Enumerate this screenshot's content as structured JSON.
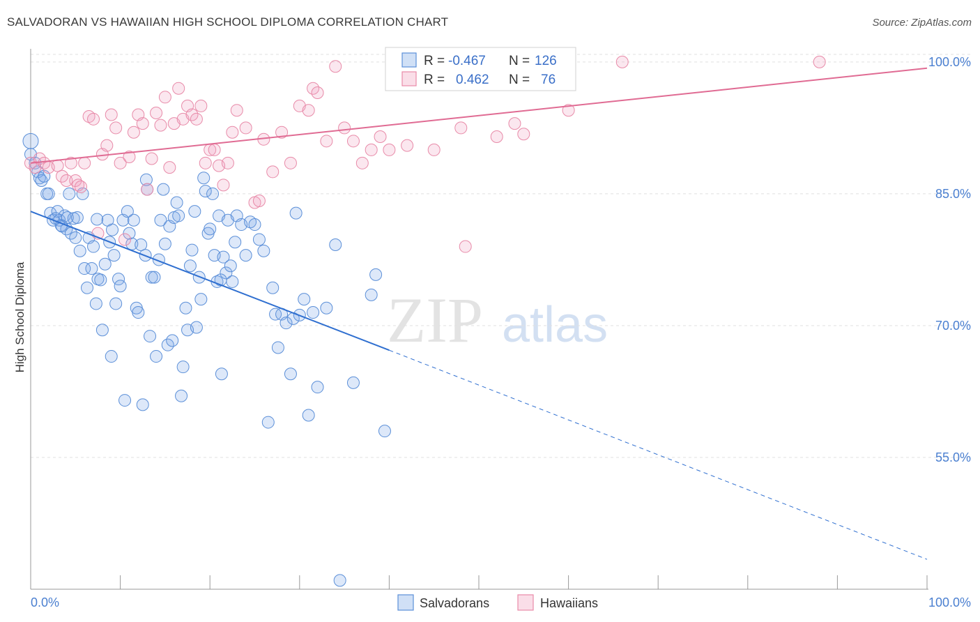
{
  "header": {
    "title": "SALVADORAN VS HAWAIIAN HIGH SCHOOL DIPLOMA CORRELATION CHART",
    "source": "Source: ZipAtlas.com"
  },
  "watermark": {
    "zip": "ZIP",
    "atlas": "atlas"
  },
  "colors": {
    "blue": "#5b8fd8",
    "blue_fill": "rgba(120,165,230,0.25)",
    "blue_line": "#2f6fd0",
    "pink": "#e88aa8",
    "pink_fill": "rgba(240,160,190,0.25)",
    "pink_line": "#e06b93",
    "grid": "#e0e0e0",
    "tick_text": "#4a7fd0"
  },
  "legend_box": {
    "r_label": "R =",
    "n_label": "N =",
    "rows": [
      {
        "r": "-0.467",
        "n": "126"
      },
      {
        "r": "0.462",
        "n": "76"
      }
    ]
  },
  "chart_data": {
    "type": "scatter",
    "title": "SALVADORAN VS HAWAIIAN HIGH SCHOOL DIPLOMA CORRELATION CHART",
    "xlabel": "",
    "ylabel": "High School Diploma",
    "xlim": [
      0,
      100
    ],
    "ylim": [
      40,
      101.5
    ],
    "x_tick_labels": [
      "0.0%",
      "100.0%"
    ],
    "y_ticks": [
      55,
      70,
      85,
      100
    ],
    "y_tick_labels": [
      "55.0%",
      "70.0%",
      "85.0%",
      "100.0%"
    ],
    "legend": [
      "Salvadorans",
      "Hawaiians"
    ],
    "series": [
      {
        "name": "Salvadorans",
        "r": -0.467,
        "n": 126,
        "trend": {
          "x0": 0,
          "y0": 83.0,
          "x1": 40,
          "y1": 67.2,
          "dash_to_x": 100,
          "dash_to_y": 43.4
        },
        "points": [
          [
            0,
            91
          ],
          [
            0,
            89.5
          ],
          [
            0.5,
            88.5
          ],
          [
            0.8,
            87.5
          ],
          [
            1,
            86.8
          ],
          [
            1.2,
            86.5
          ],
          [
            1.5,
            87
          ],
          [
            1.8,
            85
          ],
          [
            2,
            85
          ],
          [
            2.2,
            82.8
          ],
          [
            2.5,
            82
          ],
          [
            3,
            83
          ],
          [
            3.2,
            82
          ],
          [
            3.5,
            81.3
          ],
          [
            3.8,
            82.5
          ],
          [
            4,
            81
          ],
          [
            4.3,
            85
          ],
          [
            4.5,
            80.5
          ],
          [
            4.8,
            82.2
          ],
          [
            5,
            80
          ],
          [
            5.2,
            82.3
          ],
          [
            5.5,
            78.5
          ],
          [
            5.8,
            85
          ],
          [
            6,
            76.5
          ],
          [
            6.3,
            74.3
          ],
          [
            6.5,
            80
          ],
          [
            6.8,
            76.5
          ],
          [
            7,
            79
          ],
          [
            7.3,
            72.5
          ],
          [
            7.5,
            75.3
          ],
          [
            7.8,
            75.2
          ],
          [
            8,
            69.5
          ],
          [
            8.3,
            77
          ],
          [
            8.6,
            82
          ],
          [
            8.8,
            79.5
          ],
          [
            9,
            66.5
          ],
          [
            9.3,
            78
          ],
          [
            9.5,
            72.5
          ],
          [
            9.8,
            75.3
          ],
          [
            10,
            74.5
          ],
          [
            10.3,
            82
          ],
          [
            10.5,
            61.5
          ],
          [
            10.8,
            83
          ],
          [
            11,
            80.5
          ],
          [
            11.3,
            79.3
          ],
          [
            11.5,
            82
          ],
          [
            11.8,
            72
          ],
          [
            12,
            71.5
          ],
          [
            12.3,
            79.2
          ],
          [
            12.5,
            61
          ],
          [
            12.8,
            78
          ],
          [
            13,
            85.5
          ],
          [
            13.3,
            68.8
          ],
          [
            13.5,
            75.5
          ],
          [
            13.8,
            75.5
          ],
          [
            14,
            66.5
          ],
          [
            14.3,
            77.5
          ],
          [
            14.5,
            82
          ],
          [
            14.8,
            85.5
          ],
          [
            15,
            79.3
          ],
          [
            15.3,
            67.8
          ],
          [
            15.5,
            81.3
          ],
          [
            15.8,
            68.3
          ],
          [
            16,
            82.3
          ],
          [
            16.3,
            84
          ],
          [
            16.5,
            82.5
          ],
          [
            16.8,
            62
          ],
          [
            17,
            65.3
          ],
          [
            17.3,
            72
          ],
          [
            17.5,
            69.5
          ],
          [
            17.8,
            76.8
          ],
          [
            18,
            78.6
          ],
          [
            18.3,
            83
          ],
          [
            18.5,
            69.8
          ],
          [
            18.8,
            75.5
          ],
          [
            19,
            73
          ],
          [
            19.3,
            86.8
          ],
          [
            19.5,
            85.3
          ],
          [
            19.8,
            80.5
          ],
          [
            20,
            81
          ],
          [
            20.3,
            85
          ],
          [
            20.5,
            78
          ],
          [
            20.8,
            75
          ],
          [
            21,
            82.5
          ],
          [
            21.3,
            64.5
          ],
          [
            21.5,
            77.8
          ],
          [
            21.8,
            76
          ],
          [
            22,
            82
          ],
          [
            22.3,
            76.8
          ],
          [
            22.5,
            75
          ],
          [
            22.8,
            79.5
          ],
          [
            23,
            82.5
          ],
          [
            23.5,
            81.5
          ],
          [
            24,
            78
          ],
          [
            24.5,
            81.8
          ],
          [
            25,
            81.5
          ],
          [
            25.5,
            79.8
          ],
          [
            26,
            78.5
          ],
          [
            26.5,
            59
          ],
          [
            27,
            74.3
          ],
          [
            27.3,
            71.3
          ],
          [
            27.6,
            67.5
          ],
          [
            28,
            71.3
          ],
          [
            28.5,
            70.3
          ],
          [
            29,
            64.5
          ],
          [
            29.3,
            70.8
          ],
          [
            29.6,
            82.8
          ],
          [
            30,
            71.2
          ],
          [
            30.5,
            73
          ],
          [
            31,
            59.8
          ],
          [
            31.5,
            71.5
          ],
          [
            32,
            63
          ],
          [
            33,
            72
          ],
          [
            34,
            79.2
          ],
          [
            34.5,
            41
          ],
          [
            36,
            63.5
          ],
          [
            38,
            73.5
          ],
          [
            38.5,
            75.8
          ],
          [
            39.5,
            58
          ],
          [
            21.2,
            75.2
          ],
          [
            2.8,
            82.2
          ],
          [
            3.4,
            81.4
          ],
          [
            4.1,
            82.3
          ],
          [
            7.4,
            82.1
          ],
          [
            9.1,
            80.9
          ],
          [
            12.9,
            86.6
          ]
        ]
      },
      {
        "name": "Hawaiians",
        "r": 0.462,
        "n": 76,
        "trend": {
          "x0": 0,
          "y0": 88.5,
          "x1": 100,
          "y1": 99.3
        },
        "points": [
          [
            0,
            88.5
          ],
          [
            0.5,
            88
          ],
          [
            1,
            89
          ],
          [
            1.5,
            88.5
          ],
          [
            2,
            88
          ],
          [
            3,
            88.2
          ],
          [
            3.5,
            87
          ],
          [
            4,
            86.5
          ],
          [
            4.5,
            88.5
          ],
          [
            5,
            86.5
          ],
          [
            5.3,
            86
          ],
          [
            5.6,
            85.8
          ],
          [
            6,
            88.5
          ],
          [
            6.5,
            93.8
          ],
          [
            7,
            93.5
          ],
          [
            7.5,
            80.5
          ],
          [
            8,
            89.5
          ],
          [
            8.5,
            90.5
          ],
          [
            9,
            94
          ],
          [
            9.5,
            92.5
          ],
          [
            10,
            88.5
          ],
          [
            10.5,
            79.8
          ],
          [
            11,
            89.2
          ],
          [
            11.5,
            92
          ],
          [
            12,
            94
          ],
          [
            12.5,
            93
          ],
          [
            13,
            85.5
          ],
          [
            13.5,
            89
          ],
          [
            14,
            94.2
          ],
          [
            14.5,
            92.8
          ],
          [
            15,
            96
          ],
          [
            15.5,
            88
          ],
          [
            16,
            93
          ],
          [
            16.5,
            97
          ],
          [
            17,
            93.5
          ],
          [
            17.5,
            95
          ],
          [
            18,
            94
          ],
          [
            18.5,
            93.5
          ],
          [
            19,
            95
          ],
          [
            19.5,
            88.5
          ],
          [
            20,
            90
          ],
          [
            20.5,
            90
          ],
          [
            21,
            88.2
          ],
          [
            21.5,
            86
          ],
          [
            22,
            88.5
          ],
          [
            22.5,
            92
          ],
          [
            23,
            94.5
          ],
          [
            24,
            92.5
          ],
          [
            25,
            84
          ],
          [
            25.5,
            84.2
          ],
          [
            26,
            91.2
          ],
          [
            27,
            87.5
          ],
          [
            28,
            92
          ],
          [
            29,
            88.5
          ],
          [
            30,
            95
          ],
          [
            31,
            94.5
          ],
          [
            31.5,
            97
          ],
          [
            32,
            96.5
          ],
          [
            33,
            91
          ],
          [
            34,
            99.5
          ],
          [
            35,
            92.5
          ],
          [
            36,
            91
          ],
          [
            37,
            88.5
          ],
          [
            38,
            90
          ],
          [
            39,
            91.5
          ],
          [
            40,
            90
          ],
          [
            42,
            90.5
          ],
          [
            45,
            90
          ],
          [
            48,
            92.5
          ],
          [
            48.5,
            79
          ],
          [
            52,
            91.5
          ],
          [
            54,
            93
          ],
          [
            55,
            91.8
          ],
          [
            60,
            94.5
          ],
          [
            66,
            100
          ],
          [
            88,
            100
          ]
        ]
      }
    ]
  }
}
